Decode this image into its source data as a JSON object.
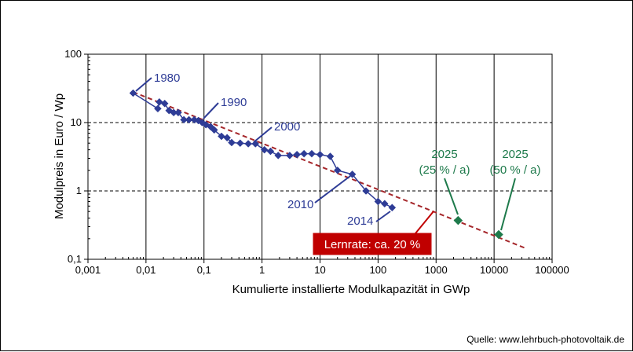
{
  "chart_data": {
    "type": "scatter",
    "xscale": "log",
    "yscale": "log",
    "xlim": [
      0.001,
      100000
    ],
    "ylim": [
      0.1,
      100
    ],
    "xlabel": "Kumulierte  installierte  Modulkapazität  in GWp",
    "ylabel": "Modulpreis in Euro / Wp",
    "xticks": [
      "0,001",
      "0,01",
      "0,1",
      "1",
      "10",
      "100",
      "1000",
      "10000",
      "100000"
    ],
    "yticks": [
      "0,1",
      "1",
      "10",
      "100"
    ],
    "grid": "horizontal dashed",
    "series": [
      {
        "color": "#2E3C96",
        "marker": "diamond",
        "x": [
          0.006,
          0.016,
          0.017,
          0.021,
          0.025,
          0.03,
          0.036,
          0.045,
          0.055,
          0.068,
          0.08,
          0.093,
          0.108,
          0.13,
          0.15,
          0.2,
          0.25,
          0.3,
          0.42,
          0.58,
          0.77,
          1.1,
          1.4,
          1.9,
          3.0,
          4.0,
          5.3,
          7.2,
          10.0,
          15.0,
          20.0,
          36.0,
          62.0,
          100.0,
          130.0,
          175.0
        ],
        "y": [
          27,
          16,
          20,
          19,
          15,
          14,
          14,
          11,
          11,
          11,
          10.7,
          10,
          9.3,
          8.7,
          7.8,
          6.3,
          6.0,
          5.1,
          5.0,
          4.9,
          4.9,
          4.0,
          3.8,
          3.3,
          3.3,
          3.4,
          3.5,
          3.5,
          3.4,
          3.2,
          2.0,
          1.75,
          1.0,
          0.7,
          0.65,
          0.57
        ]
      },
      {
        "color": "#1E7A4B",
        "marker": "diamond",
        "x": [
          2400,
          12000
        ],
        "y": [
          0.37,
          0.23
        ]
      }
    ],
    "trendline": {
      "color": "#A5262A",
      "style": "dashed",
      "x": [
        0.006,
        35000
      ],
      "y": [
        28,
        0.145
      ]
    },
    "annotations": [
      {
        "text": "1980",
        "style": "blue",
        "target": [
          0.006,
          27
        ]
      },
      {
        "text": "1990",
        "style": "blue",
        "target": [
          0.093,
          10
        ]
      },
      {
        "text": "2000",
        "style": "blue",
        "target": [
          0.8,
          4.9
        ]
      },
      {
        "text": "2010",
        "style": "blue",
        "target": [
          34,
          1.75
        ]
      },
      {
        "text": "2014",
        "style": "blue",
        "target": [
          145,
          0.6
        ]
      },
      {
        "text": "2025",
        "text2": "(25 % / a)",
        "style": "green",
        "target": [
          2400,
          0.37
        ]
      },
      {
        "text": "2025",
        "text2": "(50 % / a)",
        "style": "green",
        "target": [
          12000,
          0.23
        ]
      }
    ],
    "learning_rate_label": "Lernrate: ca. 20 %",
    "learning_rate_color": "#C00000",
    "source": "Quelle: www.lehrbuch-photovoltaik.de"
  }
}
